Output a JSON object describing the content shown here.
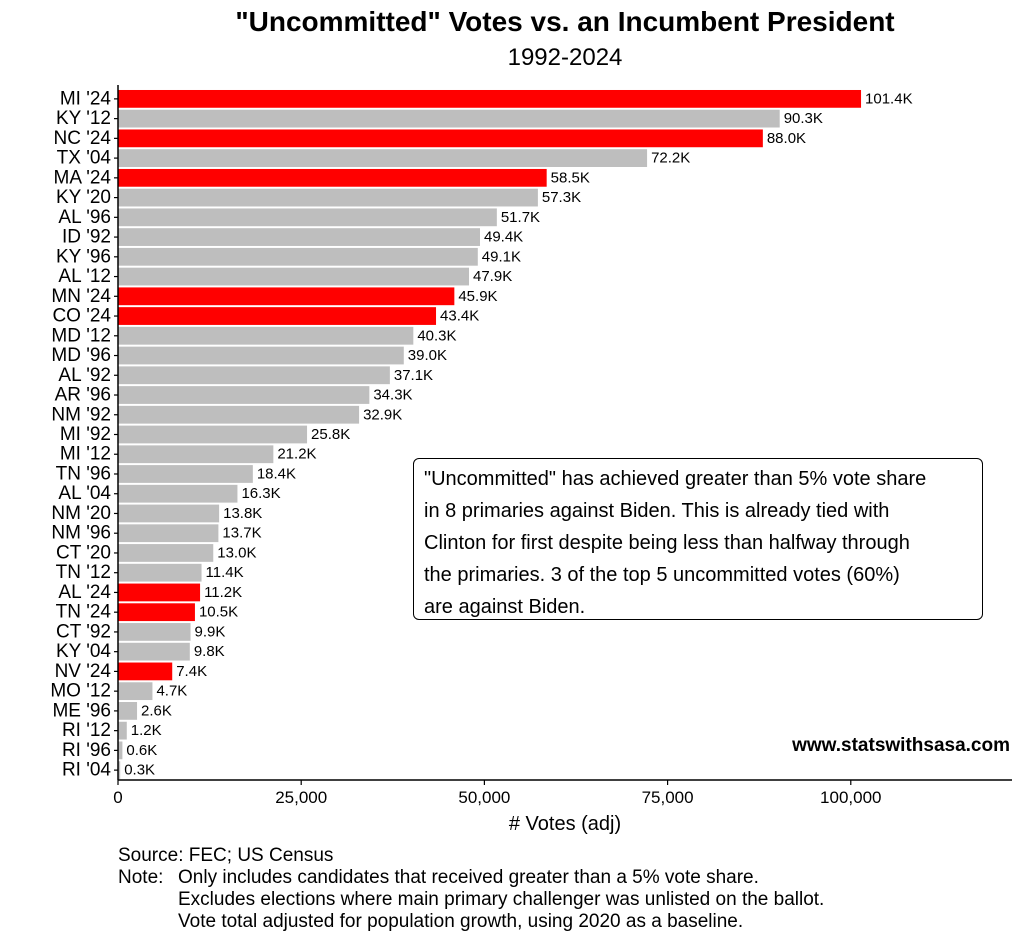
{
  "chart_data": {
    "type": "bar",
    "orientation": "horizontal",
    "title": "\"Uncommitted\" Votes vs. an Incumbent President",
    "subtitle": "1992-2024",
    "xlabel": "# Votes (adj)",
    "xlim": [
      0,
      122000
    ],
    "xticks": [
      0,
      25000,
      50000,
      75000,
      100000
    ],
    "xtick_labels": [
      "0",
      "25,000",
      "50,000",
      "75,000",
      "100,000"
    ],
    "highlight_color": "#ff0000",
    "base_color": "#bebebe",
    "categories": [
      "MI '24",
      "KY '12",
      "NC '24",
      "TX '04",
      "MA '24",
      "KY '20",
      "AL '96",
      "ID '92",
      "KY '96",
      "AL '12",
      "MN '24",
      "CO '24",
      "MD '12",
      "MD '96",
      "AL '92",
      "AR '96",
      "NM '92",
      "MI '92",
      "MI '12",
      "TN '96",
      "AL '04",
      "NM '20",
      "NM '96",
      "CT '20",
      "TN '12",
      "AL '24",
      "TN '24",
      "CT '92",
      "KY '04",
      "NV '24",
      "MO '12",
      "ME '96",
      "RI '12",
      "RI '96",
      "RI '04"
    ],
    "values": [
      101400,
      90300,
      88000,
      72200,
      58500,
      57300,
      51700,
      49400,
      49100,
      47900,
      45900,
      43400,
      40300,
      39000,
      37100,
      34300,
      32900,
      25800,
      21200,
      18400,
      16300,
      13800,
      13700,
      13000,
      11400,
      11200,
      10500,
      9900,
      9800,
      7400,
      4700,
      2600,
      1200,
      600,
      300
    ],
    "value_labels": [
      "101.4K",
      "90.3K",
      "88.0K",
      "72.2K",
      "58.5K",
      "57.3K",
      "51.7K",
      "49.4K",
      "49.1K",
      "47.9K",
      "45.9K",
      "43.4K",
      "40.3K",
      "39.0K",
      "37.1K",
      "34.3K",
      "32.9K",
      "25.8K",
      "21.2K",
      "18.4K",
      "16.3K",
      "13.8K",
      "13.7K",
      "13.0K",
      "11.4K",
      "11.2K",
      "10.5K",
      "9.9K",
      "9.8K",
      "7.4K",
      "4.7K",
      "2.6K",
      "1.2K",
      "0.6K",
      "0.3K"
    ],
    "highlighted": [
      true,
      false,
      true,
      false,
      true,
      false,
      false,
      false,
      false,
      false,
      true,
      true,
      false,
      false,
      false,
      false,
      false,
      false,
      false,
      false,
      false,
      false,
      false,
      false,
      false,
      true,
      true,
      false,
      false,
      true,
      false,
      false,
      false,
      false,
      false
    ]
  },
  "annotation_lines": [
    "\"Uncommitted\" has achieved greater than 5% vote share",
    "in 8 primaries against Biden. This is already tied with",
    "Clinton for first despite being less than halfway through",
    "the primaries. 3 of the top 5 uncommitted votes (60%)",
    "are against Biden."
  ],
  "watermark": "www.statswithsasa.com",
  "source": "Source: FEC; US Census",
  "note_label": "Note:",
  "notes": [
    "Only includes candidates that received greater than a 5% vote share.",
    "Excludes elections where main primary challenger was unlisted on the ballot.",
    "Vote total adjusted for population growth, using 2020 as a baseline."
  ]
}
